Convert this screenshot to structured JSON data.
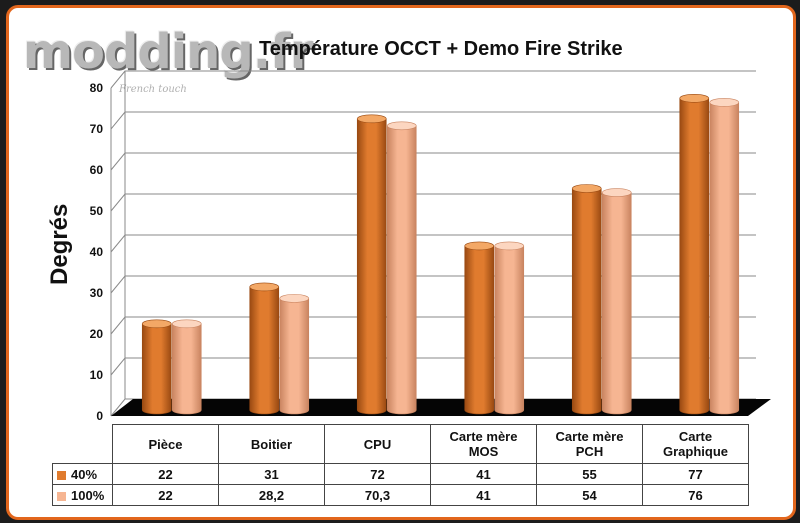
{
  "watermark": {
    "logo_text": "modding.fr",
    "tagline": "French touch"
  },
  "colors": {
    "series_40": "#e07b2e",
    "series_40_top": "#f3a866",
    "series_40_dark": "#9a4a12",
    "series_100": "#f6b592",
    "series_100_top": "#fcd6c0",
    "series_100_dark": "#c98460",
    "frame": "#e2661c",
    "floor": "#050505"
  },
  "chart_data": {
    "type": "bar",
    "title": "Température OCCT + Demo Fire Strike",
    "ylabel": "Degrés",
    "xlabel": "",
    "ylim": [
      0,
      80
    ],
    "yticks": [
      "0",
      "10",
      "20",
      "30",
      "40",
      "50",
      "60",
      "70",
      "80"
    ],
    "grid": true,
    "style": "3d-cylinder",
    "legend": "data-table",
    "categories": [
      "Pièce",
      "Boitier",
      "CPU",
      "Carte mère\nMOS",
      "Carte mère\nPCH",
      "Carte\nGraphique"
    ],
    "series": [
      {
        "name": "40%",
        "values": [
          22,
          31,
          72,
          41,
          55,
          77
        ],
        "labels": [
          "22",
          "31",
          "72",
          "41",
          "55",
          "77"
        ]
      },
      {
        "name": "100%",
        "values": [
          22,
          28.2,
          70.3,
          41,
          54,
          76
        ],
        "labels": [
          "22",
          "28,2",
          "70,3",
          "41",
          "54",
          "76"
        ]
      }
    ]
  }
}
